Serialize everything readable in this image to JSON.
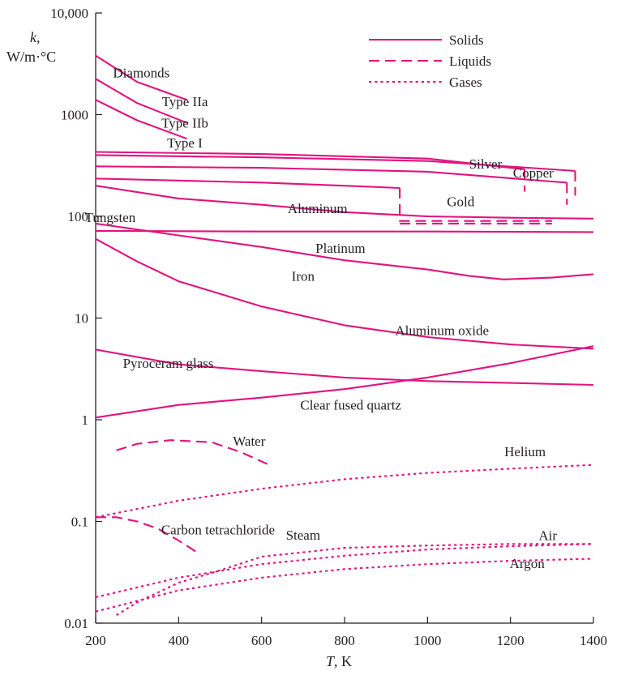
{
  "chart_data": {
    "type": "line",
    "xlabel_var": "T",
    "xlabel_unit": ", K",
    "ylabel_var": "k",
    "ylabel_unit_line1": ",",
    "ylabel_unit_line2": "W/m·°C",
    "x_scale": "linear",
    "y_scale": "log",
    "xlim": [
      200,
      1400
    ],
    "ylim": [
      0.01,
      10000
    ],
    "x_ticks": [
      200,
      400,
      600,
      800,
      1000,
      1200,
      1400
    ],
    "x_tick_labels": [
      "200",
      "400",
      "600",
      "800",
      "1000",
      "1200",
      "1400"
    ],
    "y_ticks": [
      0.01,
      0.1,
      1,
      10,
      100,
      1000,
      10000
    ],
    "y_tick_labels": [
      "0.01",
      "0.1",
      "1",
      "10",
      "100",
      "1000",
      "10,000"
    ],
    "grid": false,
    "line_color": "#e3127e",
    "text_color": "#231f20",
    "legend": {
      "placement": "top-right",
      "entries": [
        {
          "label": "Solids",
          "style": "solid"
        },
        {
          "label": "Liquids",
          "style": "dashed"
        },
        {
          "label": "Gases",
          "style": "dotted"
        }
      ]
    },
    "annotations": [
      {
        "text": "Diamonds",
        "x": 310,
        "y": 2600
      },
      {
        "text": "Type IIa",
        "x": 415,
        "y": 1350
      },
      {
        "text": "Type IIb",
        "x": 415,
        "y": 830
      },
      {
        "text": "Type I",
        "x": 415,
        "y": 530
      },
      {
        "text": "Silver",
        "x": 1140,
        "y": 330
      },
      {
        "text": "Copper",
        "x": 1255,
        "y": 270
      },
      {
        "text": "Gold",
        "x": 1080,
        "y": 140
      },
      {
        "text": "Aluminum",
        "x": 735,
        "y": 120
      },
      {
        "text": "Tungsten",
        "x": 235,
        "y": 98
      },
      {
        "text": "Platinum",
        "x": 790,
        "y": 49
      },
      {
        "text": "Iron",
        "x": 700,
        "y": 26
      },
      {
        "text": "Aluminum oxide",
        "x": 1035,
        "y": 7.6
      },
      {
        "text": "Pyroceram glass",
        "x": 375,
        "y": 3.6
      },
      {
        "text": "Clear fused quartz",
        "x": 815,
        "y": 1.4
      },
      {
        "text": "Water",
        "x": 570,
        "y": 0.62
      },
      {
        "text": "Helium",
        "x": 1235,
        "y": 0.49
      },
      {
        "text": "Carbon tetrachloride",
        "x": 495,
        "y": 0.083
      },
      {
        "text": "Steam",
        "x": 700,
        "y": 0.074
      },
      {
        "text": "Air",
        "x": 1290,
        "y": 0.073
      },
      {
        "text": "Argon",
        "x": 1240,
        "y": 0.039
      }
    ],
    "series": [
      {
        "name": "Type IIa",
        "style": "solid",
        "x": [
          200,
          300,
          420
        ],
        "y": [
          3800,
          2100,
          1400
        ]
      },
      {
        "name": "Type IIb",
        "style": "solid",
        "x": [
          200,
          300,
          420
        ],
        "y": [
          2250,
          1300,
          830
        ]
      },
      {
        "name": "Type I",
        "style": "solid",
        "x": [
          200,
          300,
          420
        ],
        "y": [
          1400,
          880,
          580
        ]
      },
      {
        "name": "Silver",
        "style": "solid",
        "x": [
          200,
          600,
          1000,
          1200,
          1234
        ],
        "y": [
          430,
          410,
          370,
          300,
          290
        ]
      },
      {
        "name": "Copper",
        "style": "solid",
        "x": [
          200,
          600,
          1000,
          1300,
          1356
        ],
        "y": [
          400,
          380,
          350,
          290,
          280
        ]
      },
      {
        "name": "Gold",
        "style": "solid",
        "x": [
          200,
          600,
          1000,
          1300,
          1336
        ],
        "y": [
          310,
          300,
          275,
          220,
          215
        ]
      },
      {
        "name": "Aluminum",
        "style": "solid",
        "x": [
          200,
          400,
          600,
          800,
          933
        ],
        "y": [
          235,
          225,
          215,
          200,
          190
        ]
      },
      {
        "name": "Tungsten",
        "style": "solid",
        "x": [
          200,
          400,
          600,
          800,
          1000,
          1200,
          1400
        ],
        "y": [
          200,
          150,
          130,
          110,
          100,
          97,
          95
        ]
      },
      {
        "name": "Platinum",
        "style": "solid",
        "x": [
          200,
          600,
          1000,
          1400
        ],
        "y": [
          72,
          71,
          71,
          70
        ]
      },
      {
        "name": "Iron",
        "style": "solid",
        "x": [
          200,
          400,
          600,
          800,
          1000,
          1100,
          1183,
          1300,
          1400
        ],
        "y": [
          85,
          65,
          50,
          37,
          30,
          26,
          24,
          25,
          27
        ]
      },
      {
        "name": "Aluminum oxide",
        "style": "solid",
        "x": [
          200,
          300,
          400,
          600,
          800,
          1000,
          1200,
          1400
        ],
        "y": [
          60,
          36,
          23,
          13,
          8.5,
          6.5,
          5.5,
          5.0
        ]
      },
      {
        "name": "Pyroceram glass",
        "style": "solid",
        "x": [
          200,
          400,
          600,
          800,
          1000,
          1200,
          1400
        ],
        "y": [
          4.9,
          3.5,
          3.0,
          2.6,
          2.4,
          2.3,
          2.2
        ]
      },
      {
        "name": "Clear fused quartz",
        "style": "solid",
        "x": [
          200,
          400,
          600,
          800,
          1000,
          1200,
          1400
        ],
        "y": [
          1.05,
          1.4,
          1.65,
          2.0,
          2.6,
          3.6,
          5.3
        ]
      },
      {
        "name": "Silver (liquid)",
        "style": "dashed",
        "x": [
          1234,
          1234
        ],
        "y": [
          290,
          175
        ]
      },
      {
        "name": "Copper (liquid)",
        "style": "dashed",
        "x": [
          1356,
          1356
        ],
        "y": [
          280,
          160
        ]
      },
      {
        "name": "Gold (liquid)",
        "style": "dashed",
        "x": [
          1336,
          1336
        ],
        "y": [
          215,
          130
        ]
      },
      {
        "name": "Aluminum (liquid)",
        "style": "dashed",
        "x": [
          933,
          933,
          1100,
          1300
        ],
        "y": [
          190,
          90,
          90,
          90
        ]
      },
      {
        "name": "Liquid metal",
        "style": "dashed",
        "x": [
          933,
          1100,
          1300
        ],
        "y": [
          85,
          85,
          85
        ]
      },
      {
        "name": "Water",
        "style": "dashed",
        "x": [
          250,
          300,
          380,
          480,
          550,
          625
        ],
        "y": [
          0.5,
          0.58,
          0.63,
          0.6,
          0.48,
          0.35
        ]
      },
      {
        "name": "Carbon tetrachloride",
        "style": "dashed",
        "x": [
          200,
          250,
          300,
          350,
          400,
          450
        ],
        "y": [
          0.11,
          0.11,
          0.1,
          0.085,
          0.065,
          0.048
        ]
      },
      {
        "name": "Helium",
        "style": "dotted",
        "x": [
          200,
          400,
          600,
          800,
          1000,
          1200,
          1400
        ],
        "y": [
          0.11,
          0.16,
          0.21,
          0.26,
          0.3,
          0.33,
          0.36
        ]
      },
      {
        "name": "Steam",
        "style": "dotted",
        "x": [
          250,
          300,
          400,
          500,
          600,
          800,
          1000,
          1200,
          1400
        ],
        "y": [
          0.012,
          0.016,
          0.025,
          0.033,
          0.045,
          0.055,
          0.058,
          0.06,
          0.06
        ]
      },
      {
        "name": "Air",
        "style": "dotted",
        "x": [
          200,
          400,
          600,
          800,
          1000,
          1200,
          1400
        ],
        "y": [
          0.018,
          0.028,
          0.038,
          0.046,
          0.053,
          0.057,
          0.06
        ]
      },
      {
        "name": "Argon",
        "style": "dotted",
        "x": [
          200,
          400,
          600,
          800,
          1000,
          1200,
          1400
        ],
        "y": [
          0.013,
          0.021,
          0.028,
          0.034,
          0.038,
          0.041,
          0.043
        ]
      }
    ]
  }
}
